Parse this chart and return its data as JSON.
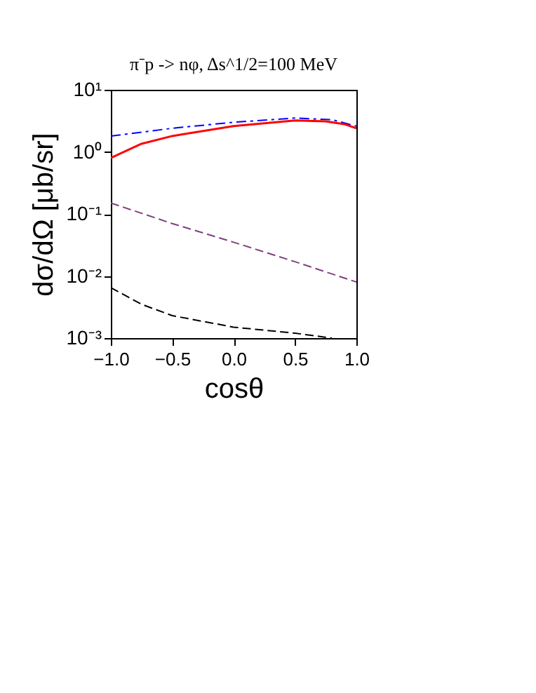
{
  "chart_data": {
    "type": "line",
    "title": "π⁻p -> nφ,  Δs^1/2=100 MeV",
    "xlabel": "cosθ",
    "ylabel": "dσ/dΩ [μb/sr]",
    "log": "y",
    "xlim": [
      -1.0,
      1.0
    ],
    "xticks": [
      {
        "value": -1.0,
        "label": "−1.0"
      },
      {
        "value": -0.5,
        "label": "−0.5"
      },
      {
        "value": 0.0,
        "label": "0.0"
      },
      {
        "value": 0.5,
        "label": "0.5"
      },
      {
        "value": 1.0,
        "label": "1.0"
      }
    ],
    "ylim": [
      0.001,
      10
    ],
    "yticks": [
      {
        "value": 0.001,
        "label": "10⁻³"
      },
      {
        "value": 0.01,
        "label": "10⁻²"
      },
      {
        "value": 0.1,
        "label": "10⁻¹"
      },
      {
        "value": 1,
        "label": "10⁰"
      },
      {
        "value": 10,
        "label": "10¹"
      }
    ],
    "grid": false,
    "series": [
      {
        "color": "#0000ff",
        "line_style": "dashdot",
        "x": [
          -1.0,
          -0.5,
          0.0,
          0.5,
          0.8,
          1.0
        ],
        "values": [
          1.8,
          2.4,
          3.0,
          3.5,
          3.3,
          2.6
        ]
      },
      {
        "color": "#ff0000",
        "line_style": "solid",
        "x": [
          -1.0,
          -0.75,
          -0.5,
          0.0,
          0.5,
          0.75,
          0.9,
          1.0
        ],
        "values": [
          0.8,
          1.35,
          1.8,
          2.6,
          3.2,
          3.1,
          2.8,
          2.4
        ]
      },
      {
        "color": "#7f3f7f",
        "line_style": "dashed",
        "x": [
          -1.0,
          -0.5,
          0.0,
          0.5,
          1.0
        ],
        "values": [
          0.15,
          0.07,
          0.035,
          0.017,
          0.008
        ]
      },
      {
        "color": "#000000",
        "line_style": "dashed",
        "x": [
          -1.0,
          -0.75,
          -0.5,
          0.0,
          0.5,
          0.8
        ],
        "values": [
          0.0065,
          0.0035,
          0.0023,
          0.0015,
          0.0012,
          0.001
        ]
      }
    ]
  }
}
